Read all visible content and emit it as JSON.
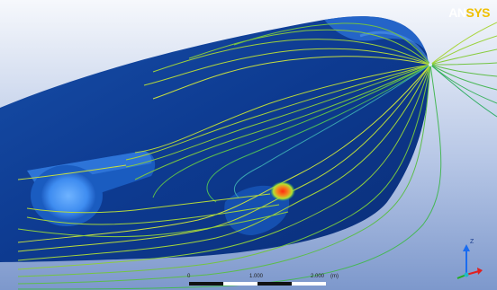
{
  "logo": {
    "prefix": "AN",
    "suffix": "SYS"
  },
  "scale_bar": {
    "ticks": [
      "0",
      "1.000",
      "2.000"
    ],
    "unit": "(m)"
  },
  "triad": {
    "axis_label": "Z"
  },
  "colors": {
    "background_top": "#ffffff",
    "background_bottom": "#7f9ccf",
    "hull": "#0f3b8f",
    "hull_highlight": "#3a7be0",
    "streamline_low": "#1fb86f",
    "streamline_mid": "#c8e23a",
    "streamline_high": "#e84020"
  }
}
